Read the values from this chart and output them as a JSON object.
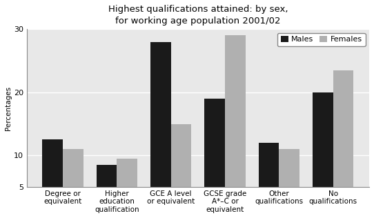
{
  "title": "Highest qualifications attained: by sex,\nfor working age population 2001/02",
  "ylabel": "Percentages",
  "categories": [
    "Degree or\nequivalent",
    "Higher\neducation\nqualification",
    "GCE A level\nor equivalent",
    "GCSE grade\nA*–C or\nequivalent",
    "Other\nqualifications",
    "No\nqualifications"
  ],
  "males": [
    12.5,
    8.5,
    28.0,
    19.0,
    12.0,
    20.0
  ],
  "females": [
    11.0,
    9.5,
    15.0,
    29.0,
    11.0,
    23.5
  ],
  "male_color": "#1a1a1a",
  "female_color": "#b0b0b0",
  "ylim": [
    5,
    30
  ],
  "yticks": [
    5,
    10,
    20,
    30
  ],
  "legend_labels": [
    "Males",
    "Females"
  ],
  "bar_width": 0.38,
  "background_color": "#ffffff",
  "plot_bg_color": "#e8e8e8",
  "title_fontsize": 9.5,
  "axis_label_fontsize": 7.5,
  "tick_fontsize": 8,
  "legend_fontsize": 8
}
